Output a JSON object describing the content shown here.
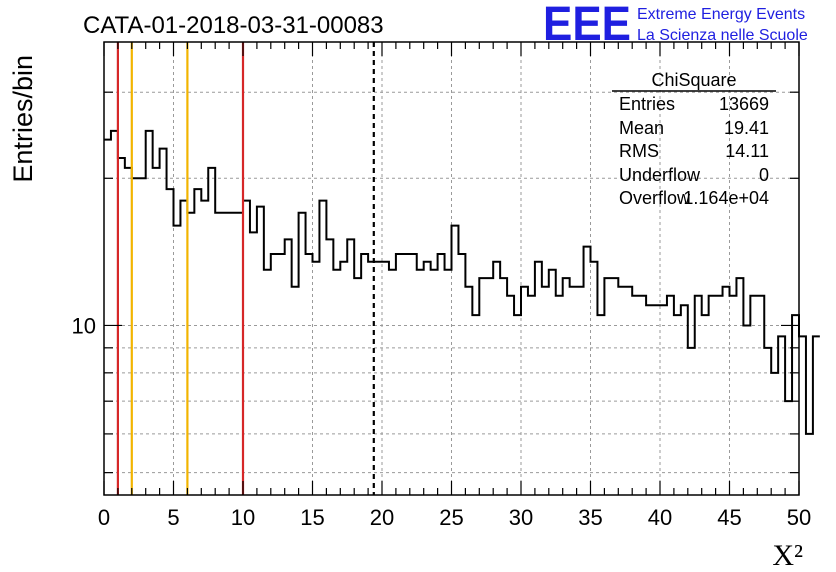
{
  "chart_data": {
    "type": "histogram",
    "title": "CATA-01-2018-03-31-00083",
    "xlabel": "X²",
    "ylabel": "Entries/bin",
    "xlim": [
      0,
      50
    ],
    "ylim": [
      4.5,
      38
    ],
    "y_scale": "log",
    "grid": true,
    "bin_width": 0.5,
    "x_ticks": [
      0,
      5,
      10,
      15,
      20,
      25,
      30,
      35,
      40,
      45,
      50
    ],
    "y_tick_labels": [
      {
        "value": 10,
        "label": "10"
      }
    ],
    "bin_values": [
      24,
      25,
      22,
      21,
      20,
      20,
      25,
      21,
      23,
      19,
      16,
      18,
      17,
      19,
      18,
      21,
      17,
      17,
      17,
      17,
      18,
      15.5,
      17.5,
      13,
      14,
      14,
      15,
      12,
      17,
      14,
      13.5,
      18,
      15,
      13,
      13.5,
      15,
      12.5,
      14,
      13.5,
      13.5,
      13.5,
      13,
      14,
      14,
      14,
      13,
      13.5,
      13,
      14,
      13,
      16,
      14,
      12,
      10.5,
      12.5,
      12.5,
      13.5,
      12.5,
      11.5,
      10.5,
      12,
      11.5,
      13.5,
      12,
      13,
      11.5,
      12.5,
      12,
      12,
      14.5,
      13.5,
      10.5,
      12.5,
      12.5,
      12,
      12,
      11.5,
      11.5,
      11,
      11,
      11,
      11.5,
      10.5,
      11,
      9,
      11.5,
      10.5,
      11.5,
      11.5,
      12,
      11.5,
      12.5,
      10,
      11.5,
      11.5,
      9,
      8,
      9.5,
      7,
      10.5,
      9.5,
      6,
      9.5
    ],
    "vertical_lines": [
      {
        "x": 1,
        "color": "#d62728",
        "style": "solid"
      },
      {
        "x": 2,
        "color": "#f2b400",
        "style": "solid"
      },
      {
        "x": 6,
        "color": "#f2b400",
        "style": "solid"
      },
      {
        "x": 10,
        "color": "#d62728",
        "style": "solid"
      },
      {
        "x": 19.41,
        "color": "#000000",
        "style": "dashed"
      }
    ],
    "stats_box": {
      "title": "ChiSquare",
      "rows": [
        {
          "label": "Entries",
          "value": "13669"
        },
        {
          "label": "Mean",
          "value": "19.41"
        },
        {
          "label": "RMS",
          "value": "14.11"
        },
        {
          "label": "Underflow",
          "value": "0"
        },
        {
          "label": "Overflow",
          "value": "1.164e+04"
        }
      ]
    }
  },
  "logo": {
    "letters": "EEE",
    "line1": "Extreme Energy Events",
    "line2": "La Scienza nelle Scuole",
    "color": "#1f1fe0"
  }
}
